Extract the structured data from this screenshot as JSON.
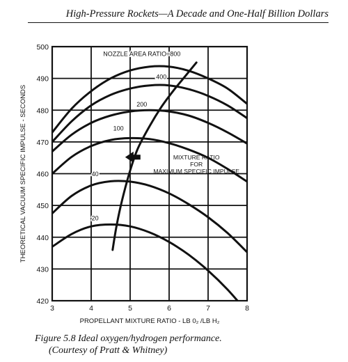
{
  "header": {
    "running_title": "High-Pressure Rockets—A Decade and One-Half Billion Dollars"
  },
  "caption": {
    "line1": "Figure 5.8  Ideal oxygen/hydrogen performance.",
    "line2": "(Courtesy of Pratt & Whitney)"
  },
  "chart_data": {
    "type": "line",
    "title": "",
    "xlabel": "PROPELLANT MIXTURE RATIO - LB 0₂ /LB H₂",
    "ylabel": "THEORETICAL VACUUM SPECIFIC IMPULSE - SECONDS",
    "xlim": [
      3,
      8
    ],
    "ylim": [
      420,
      500
    ],
    "xticks": [
      3,
      4,
      5,
      6,
      7,
      8
    ],
    "yticks": [
      420,
      430,
      440,
      450,
      460,
      470,
      480,
      490,
      500
    ],
    "grid": true,
    "series": [
      {
        "name": "20",
        "x": [
          3.0,
          3.5,
          4.0,
          4.5,
          5.0,
          5.5,
          6.0,
          6.5,
          7.0,
          7.5,
          8.0
        ],
        "y": [
          437.0,
          441.0,
          443.4,
          444.0,
          443.4,
          441.5,
          438.5,
          434.5,
          429.5,
          423.5,
          416.5
        ]
      },
      {
        "name": "40",
        "x": [
          3.0,
          3.5,
          4.0,
          4.5,
          5.0,
          5.5,
          6.0,
          6.5,
          7.0,
          7.5,
          8.0
        ],
        "y": [
          447.5,
          453.0,
          456.3,
          457.6,
          457.5,
          456.2,
          453.8,
          450.4,
          446.3,
          441.3,
          435.3
        ]
      },
      {
        "name": "100",
        "x": [
          3.0,
          3.5,
          4.0,
          4.5,
          5.0,
          5.5,
          6.0,
          6.5,
          7.0,
          7.5,
          8.0
        ],
        "y": [
          460.0,
          465.3,
          468.7,
          470.6,
          471.2,
          470.9,
          469.6,
          467.6,
          465.0,
          461.5,
          457.5
        ]
      },
      {
        "name": "200",
        "x": [
          3.0,
          3.5,
          4.0,
          4.5,
          5.0,
          5.5,
          6.0,
          6.5,
          7.0,
          7.5,
          8.0
        ],
        "y": [
          467.0,
          472.3,
          476.0,
          478.3,
          479.6,
          480.0,
          479.6,
          478.3,
          476.0,
          473.0,
          469.5
        ]
      },
      {
        "name": "400",
        "x": [
          3.0,
          3.5,
          4.0,
          4.5,
          5.0,
          5.5,
          6.0,
          6.5,
          7.0,
          7.5,
          8.0
        ],
        "y": [
          470.0,
          476.5,
          481.5,
          484.8,
          486.8,
          487.8,
          487.8,
          486.6,
          484.5,
          481.5,
          477.5
        ]
      },
      {
        "name": "800",
        "x": [
          3.0,
          3.5,
          4.0,
          4.5,
          5.0,
          5.5,
          6.0,
          6.5,
          7.0,
          7.5,
          8.0
        ],
        "y": [
          473.0,
          480.5,
          486.0,
          490.0,
          492.5,
          493.7,
          493.7,
          492.4,
          490.0,
          486.8,
          482.0
        ]
      },
      {
        "name": "",
        "x": [
          4.55,
          4.65,
          4.8,
          5.0,
          5.2,
          5.5,
          5.8,
          6.1,
          6.4,
          6.7
        ],
        "y": [
          436.0,
          443.5,
          452.0,
          461.0,
          468.0,
          475.0,
          481.0,
          486.0,
          490.5,
          495.0
        ]
      }
    ],
    "curve_labels": [
      {
        "text": "NOZZLE AREA RATIO=800",
        "x": 5.3,
        "y": 497
      },
      {
        "text": "400",
        "x": 5.8,
        "y": 489.8
      },
      {
        "text": "200",
        "x": 5.3,
        "y": 481.2
      },
      {
        "text": "100",
        "x": 4.7,
        "y": 473.6
      },
      {
        "text": "40",
        "x": 4.1,
        "y": 459.2
      },
      {
        "text": "20",
        "x": 4.1,
        "y": 445.3
      }
    ],
    "annotation": {
      "lines": [
        "MIXTURE RATIO",
        "FOR",
        "MAXIMUM SPECIFIC IMPULSE"
      ],
      "x": 6.7,
      "y": 464.5
    }
  }
}
